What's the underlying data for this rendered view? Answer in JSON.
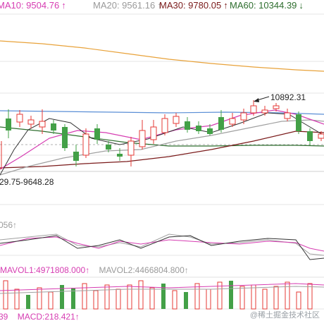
{
  "ma_legend": {
    "ma10": {
      "text": "MA10: 9504.76",
      "arrow": "↑",
      "color": "#d63db2"
    },
    "ma20": {
      "text": "MA20: 9561.16",
      "arrow": "↑",
      "color": "#a0a0a0"
    },
    "ma30": {
      "text": "MA30: 9780.05",
      "arrow": "↑",
      "color": "#7a1a1a"
    },
    "ma60": {
      "text": "MA60: 10344.39",
      "arrow": "↓",
      "color": "#2e6e2e"
    }
  },
  "annotations": {
    "high_price": "10892.31",
    "low_range": "29.75-9648.28",
    "vol_axis_value": "056↑"
  },
  "volume_legend": {
    "mavol1": {
      "text": "MAVOL1:4971808.000↑",
      "color": "#d63db2"
    },
    "mavol2": {
      "text": "MAVOL2:4466804.800↑",
      "color": "#a0a0a0"
    }
  },
  "macd_legend": {
    "left_value": {
      "text": "39",
      "color": "#d63db2"
    },
    "macd": {
      "text": "MACD:218.421↑",
      "color": "#d63db2"
    }
  },
  "watermark": "@稀土掘金技术社区",
  "colors": {
    "up": "#e53935",
    "down": "#43a047",
    "grid": "#e6e6e6"
  }
}
